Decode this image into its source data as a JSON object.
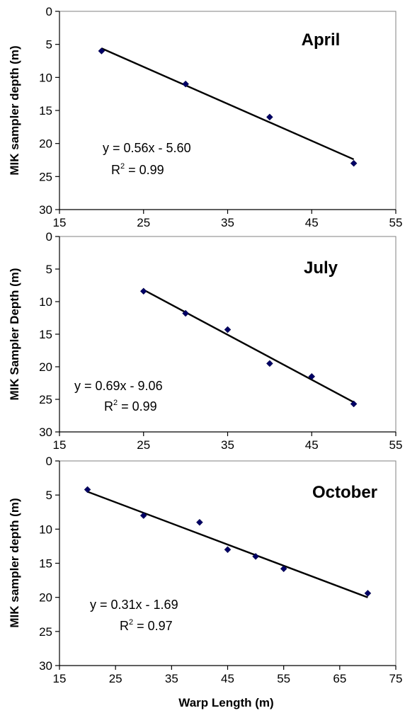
{
  "chart_data": [
    {
      "type": "scatter",
      "title": "April",
      "xlabel": "",
      "ylabel": "MIK sampler depth (m)",
      "xlim": [
        15,
        55
      ],
      "ylim": [
        0,
        30
      ],
      "y_inverted": true,
      "xticks": [
        "15",
        "25",
        "35",
        "45",
        "55"
      ],
      "yticks": [
        "0",
        "5",
        "10",
        "15",
        "20",
        "25",
        "30"
      ],
      "grid": false,
      "series": [
        {
          "x": [
            20,
            30,
            40,
            50
          ],
          "y": [
            6,
            11,
            16,
            23
          ],
          "marker": "diamond",
          "color": "#000066"
        }
      ],
      "trendline": {
        "slope": 0.56,
        "intercept": -5.6,
        "x_range": [
          20,
          50
        ]
      },
      "equation": "y = 0.56x - 5.60",
      "r2_prefix": "R",
      "r2_sup": "2",
      "r2_value": " = 0.99"
    },
    {
      "type": "scatter",
      "title": "July",
      "xlabel": "",
      "ylabel": "MIK Sampler Depth (m)",
      "xlim": [
        15,
        55
      ],
      "ylim": [
        0,
        30
      ],
      "y_inverted": true,
      "xticks": [
        "15",
        "25",
        "35",
        "45",
        "55"
      ],
      "yticks": [
        "0",
        "5",
        "10",
        "15",
        "20",
        "25",
        "30"
      ],
      "grid": false,
      "series": [
        {
          "x": [
            25,
            30,
            35,
            40,
            45,
            50
          ],
          "y": [
            8.4,
            11.8,
            14.3,
            19.5,
            21.5,
            25.7
          ],
          "marker": "diamond",
          "color": "#000066"
        }
      ],
      "trendline": {
        "slope": 0.69,
        "intercept": -9.06,
        "x_range": [
          25,
          50
        ]
      },
      "equation": "y = 0.69x - 9.06",
      "r2_prefix": "R",
      "r2_sup": "2",
      "r2_value": " = 0.99"
    },
    {
      "type": "scatter",
      "title": "October",
      "xlabel": "Warp Length (m)",
      "ylabel": "MIK sampler depth (m)",
      "xlim": [
        15,
        75
      ],
      "ylim": [
        0,
        30
      ],
      "y_inverted": true,
      "xticks": [
        "15",
        "25",
        "35",
        "45",
        "55",
        "65",
        "75"
      ],
      "yticks": [
        "0",
        "5",
        "10",
        "15",
        "20",
        "25",
        "30"
      ],
      "grid": false,
      "series": [
        {
          "x": [
            20,
            30,
            40,
            45,
            50,
            55,
            70
          ],
          "y": [
            4.2,
            8.0,
            9.0,
            13.0,
            14.0,
            15.8,
            19.4
          ],
          "marker": "diamond",
          "color": "#000066"
        }
      ],
      "trendline": {
        "slope": 0.31,
        "intercept": -1.69,
        "x_range": [
          20,
          70
        ]
      },
      "equation": "y = 0.31x - 1.69",
      "r2_prefix": "R",
      "r2_sup": "2",
      "r2_value": " = 0.97"
    }
  ]
}
